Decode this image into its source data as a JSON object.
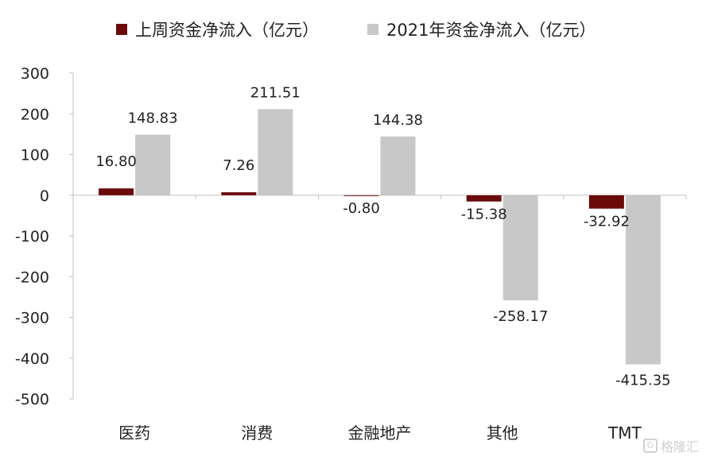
{
  "legend": {
    "series_1": "上周资金净流入（亿元）",
    "series_2": "2021年资金净流入（亿元）"
  },
  "watermark": {
    "text": "格隆汇",
    "logo": "G"
  },
  "colors": {
    "series_1": "#6b0a0a",
    "series_2": "#c8c8c8",
    "axis": "#bfbfbf"
  },
  "chart_data": {
    "type": "bar",
    "categories": [
      "医药",
      "消费",
      "金融地产",
      "其他",
      "TMT"
    ],
    "series": [
      {
        "name": "上周资金净流入（亿元）",
        "values": [
          16.8,
          7.26,
          -0.8,
          -15.38,
          -32.92
        ],
        "labels": [
          "16.80",
          "7.26",
          "-0.80",
          "-15.38",
          "-32.92"
        ]
      },
      {
        "name": "2021年资金净流入（亿元）",
        "values": [
          148.83,
          211.51,
          144.38,
          -258.17,
          -415.35
        ],
        "labels": [
          "148.83",
          "211.51",
          "144.38",
          "-258.17",
          "-415.35"
        ]
      }
    ],
    "yticks": [
      "300",
      "200",
      "100",
      "0",
      "-100",
      "-200",
      "-300",
      "-400",
      "-500"
    ],
    "ylim": [
      -500,
      300
    ],
    "legend_position": "top",
    "grid": false
  }
}
